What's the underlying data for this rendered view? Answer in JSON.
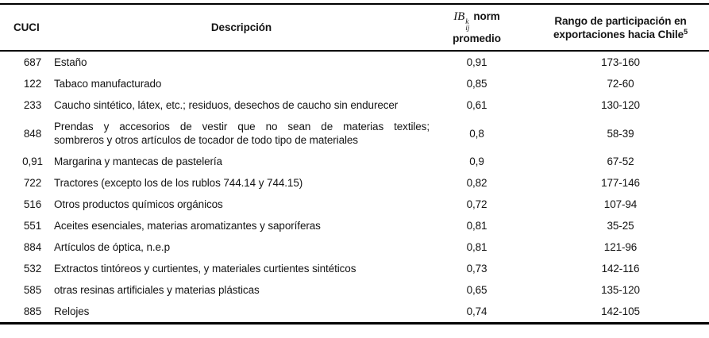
{
  "table": {
    "header": {
      "col1": "CUCI",
      "col2": "Descripción",
      "col3": {
        "var": "IB",
        "sup": "k",
        "sub": "ij",
        "word": "norm",
        "line2": "promedio"
      },
      "col4": {
        "line1": "Rango de participación en",
        "line2": "exportaciones hacia Chile",
        "sup": "5"
      }
    },
    "rows": [
      {
        "cuci": "687",
        "desc": "Estaño",
        "ib": "0,91",
        "rango": "173-160"
      },
      {
        "cuci": "122",
        "desc": "Tabaco manufacturado",
        "ib": "0,85",
        "rango": "72-60"
      },
      {
        "cuci": "233",
        "desc": "Caucho sintético, látex, etc.; residuos, desechos de caucho sin endurecer",
        "ib": "0,61",
        "rango": "130-120"
      },
      {
        "cuci": "848",
        "desc_line1": "Prendas y accesorios de vestir que no sean de materias textiles;",
        "desc_line2": "sombreros y otros artículos de tocador de todo tipo de materiales",
        "ib": "0,8",
        "rango": "58-39"
      },
      {
        "cuci": "0,91",
        "desc": "Margarina y mantecas de pastelería",
        "ib": "0,9",
        "rango": "67-52"
      },
      {
        "cuci": "722",
        "desc": "Tractores (excepto los de los rublos 744.14 y 744.15)",
        "ib": "0,82",
        "rango": "177-146"
      },
      {
        "cuci": "516",
        "desc": "Otros productos químicos orgánicos",
        "ib": "0,72",
        "rango": "107-94"
      },
      {
        "cuci": "551",
        "desc": "Aceites esenciales, materias aromatizantes y saporíferas",
        "ib": "0,81",
        "rango": "35-25"
      },
      {
        "cuci": "884",
        "desc": "Artículos de óptica, n.e.p",
        "ib": "0,81",
        "rango": "121-96"
      },
      {
        "cuci": "532",
        "desc": "Extractos tintóreos y curtientes, y materiales curtientes sintéticos",
        "ib": "0,73",
        "rango": "142-116"
      },
      {
        "cuci": "585",
        "desc": "otras resinas artificiales y materias plásticas",
        "ib": "0,65",
        "rango": "135-120"
      },
      {
        "cuci": "885",
        "desc": "Relojes",
        "ib": "0,74",
        "rango": "142-105"
      }
    ],
    "colors": {
      "text": "#141414",
      "rule": "#000000",
      "background": "#ffffff"
    }
  }
}
